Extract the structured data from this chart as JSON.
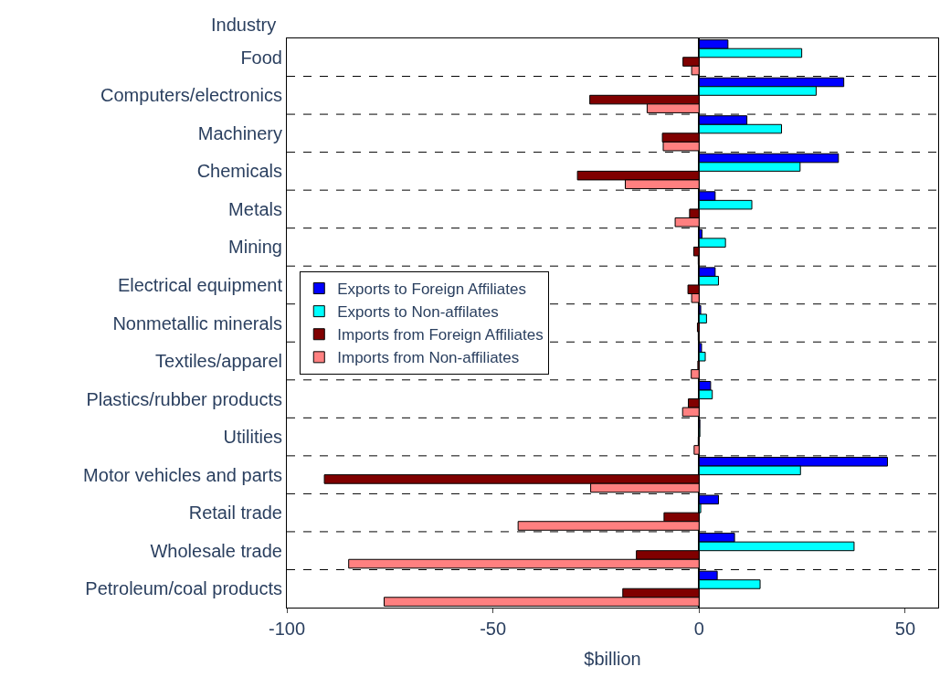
{
  "chart_data": {
    "type": "bar",
    "orientation": "horizontal",
    "ylabel": "Industry",
    "xlabel": "$billion",
    "categories": [
      "Food",
      "Computers/electronics",
      "Machinery",
      "Chemicals",
      "Metals",
      "Mining",
      "Electrical equipment",
      "Nonmetallic minerals",
      "Textiles/apparel",
      "Plastics/rubber products",
      "Utilities",
      "Motor vehicles and parts",
      "Retail trade",
      "Wholesale trade",
      "Petroleum/coal products"
    ],
    "series": [
      {
        "name": "Exports to Foreign Affiliates",
        "color": "#0000ff",
        "values": [
          7.0,
          35.1,
          11.6,
          33.8,
          3.9,
          0.7,
          3.9,
          0.4,
          0.6,
          2.8,
          0.2,
          45.7,
          4.7,
          8.6,
          4.4
        ]
      },
      {
        "name": "Exports to Non-affilates",
        "color": "#00ffff",
        "values": [
          24.9,
          28.4,
          20.0,
          24.5,
          12.8,
          6.4,
          4.7,
          1.8,
          1.5,
          3.2,
          0.2,
          24.6,
          0.4,
          37.6,
          14.8
        ]
      },
      {
        "name": "Imports from Foreign Affiliates",
        "color": "#800000",
        "values": [
          -3.9,
          -26.5,
          -8.9,
          -29.5,
          -2.3,
          -1.3,
          -2.7,
          -0.4,
          -0.3,
          -2.6,
          -0.2,
          -90.9,
          -8.5,
          -15.2,
          -18.5
        ]
      },
      {
        "name": "Imports from Non-affiliates",
        "color": "#ff8080",
        "values": [
          -1.8,
          -12.6,
          -8.7,
          -17.9,
          -5.8,
          -0.2,
          -1.8,
          -0.2,
          -1.9,
          -4.0,
          -1.2,
          -26.3,
          -43.9,
          -85.0,
          -76.4
        ]
      }
    ],
    "xlim": [
      -100,
      58
    ],
    "xticks": [
      -100,
      -50,
      0,
      50
    ],
    "grid": "y",
    "legend": "left"
  }
}
